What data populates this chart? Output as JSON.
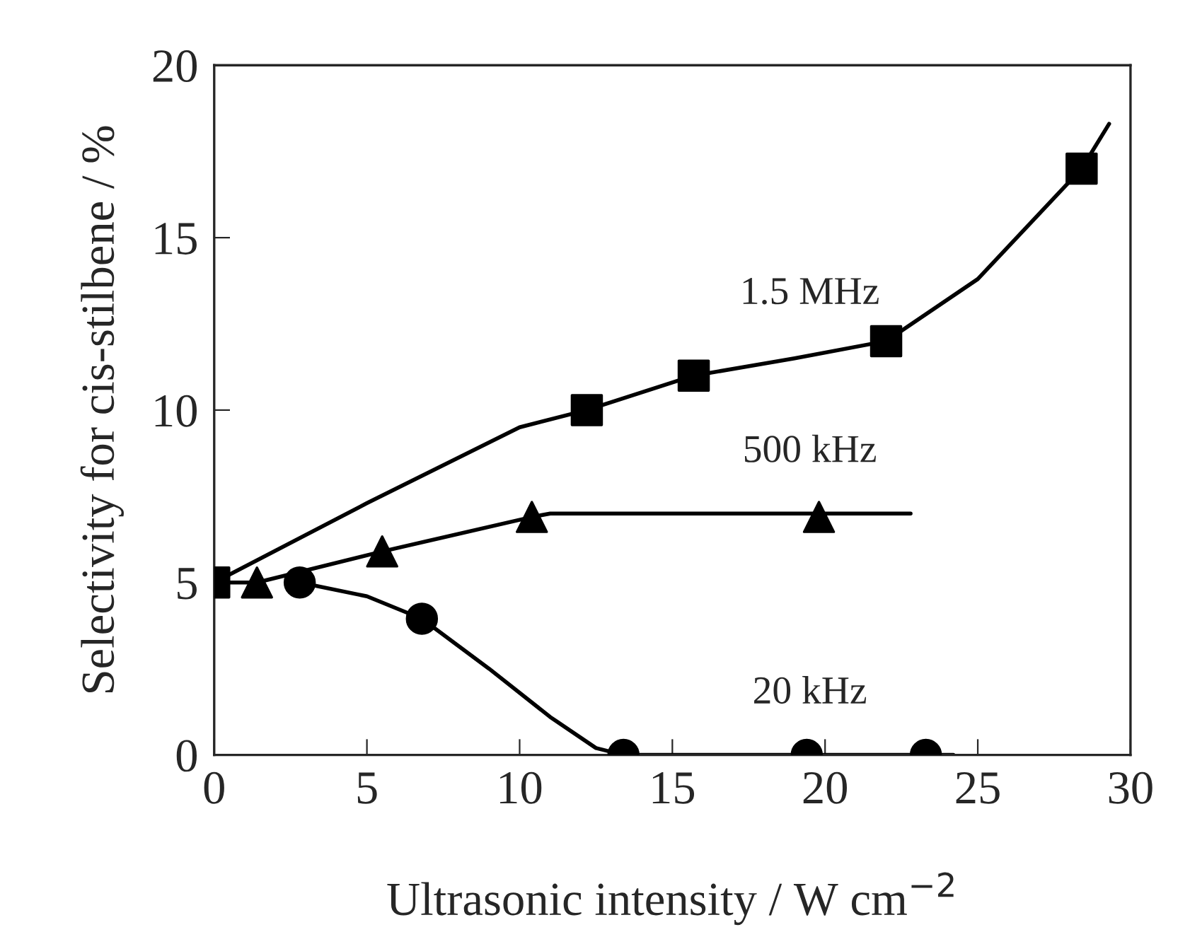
{
  "chart_data": {
    "type": "scatter",
    "xlabel": "Ultrasonic intensity / W cm$^{−2}$",
    "ylabel": "Selectivity for cis-stilbene / %",
    "xlim": [
      0,
      30
    ],
    "ylim": [
      0,
      20
    ],
    "xticks": [
      0,
      5,
      10,
      15,
      20,
      25,
      30
    ],
    "yticks": [
      0,
      5,
      10,
      15,
      20
    ],
    "grid": false,
    "legend": false,
    "series": [
      {
        "type": "line",
        "name": "1.5 MHz",
        "color": "#000000",
        "marker": "none",
        "line_style": "solid",
        "x": [
          0,
          5,
          10,
          12.2,
          15.7,
          19,
          22,
          25,
          28.4,
          29.3
        ],
        "values": [
          5,
          7.3,
          9.5,
          10,
          11,
          11.5,
          12,
          13.8,
          17,
          18.3
        ]
      },
      {
        "type": "line",
        "name": "500 kHz",
        "color": "#000000",
        "marker": "none",
        "line_style": "solid",
        "x": [
          0,
          1.4,
          5.5,
          10.4,
          11,
          22.8
        ],
        "values": [
          5,
          5,
          5.9,
          6.9,
          7,
          7
        ]
      },
      {
        "type": "line",
        "name": "20 kHz",
        "color": "#000000",
        "marker": "none",
        "line_style": "solid",
        "x": [
          2.8,
          5,
          6.8,
          9,
          11,
          12.5,
          13.4,
          24.2
        ],
        "values": [
          5,
          4.6,
          3.95,
          2.5,
          1.1,
          0.2,
          0,
          0
        ]
      },
      {
        "color": "#000000",
        "marker": "square",
        "x": [
          0,
          12.2,
          15.7,
          22,
          28.4
        ],
        "values": [
          5,
          10,
          11,
          12,
          17
        ]
      },
      {
        "color": "#000000",
        "marker": "triangle",
        "x": [
          1.4,
          5.5,
          10.4,
          19.8
        ],
        "values": [
          5,
          5.9,
          6.9,
          6.9
        ]
      },
      {
        "color": "#000000",
        "marker": "circle",
        "x": [
          2.8,
          6.8,
          13.4,
          19.4,
          23.3
        ],
        "values": [
          5,
          3.95,
          0,
          0,
          0
        ]
      }
    ]
  }
}
